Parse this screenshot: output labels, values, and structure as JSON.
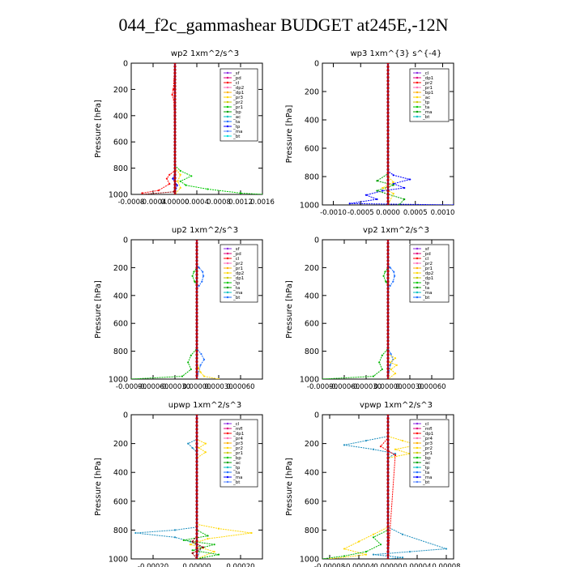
{
  "page": {
    "title": "044_f2c_gammashear  BUDGET at245E,-12N"
  },
  "chart_data": [
    {
      "type": "line",
      "title": "wp2   1xm^2/s^3",
      "ylabel": "Pressure [hPa]",
      "ylim": [
        1000,
        0
      ],
      "yticks": [
        0,
        200,
        400,
        600,
        800,
        1000
      ],
      "xlim": [
        -0.0008,
        0.0016
      ],
      "xticks": [
        -0.0008,
        -0.0004,
        0.0,
        0.0004,
        0.0008,
        0.0012,
        0.0016
      ],
      "xticklabels": [
        "-0.0008",
        "-0.0004",
        "0.00000",
        "0.0004",
        "0.0008",
        "0.0012",
        "0.0016"
      ],
      "legend": [
        "_sf",
        "_pd",
        "_cl",
        "_dp2",
        "_dp1",
        "_pr3",
        "_pr2",
        "_pr1",
        "_bp",
        "_ac",
        "_ta",
        "_tp",
        "_ma",
        "_bt"
      ],
      "series": [
        {
          "color": "#00c800",
          "x": [
            0,
            0,
            0,
            0,
            0.0001,
            0.0003,
            0.0001,
            0.0002,
            0.0006,
            0.0012,
            0.0016
          ],
          "y": [
            0,
            200,
            600,
            780,
            820,
            860,
            900,
            930,
            960,
            990,
            1000
          ]
        },
        {
          "color": "#ff0000",
          "x": [
            0,
            -3e-05,
            -5e-05,
            -2e-05,
            0,
            0,
            -0.0001,
            -0.00015,
            -0.0001,
            -0.0003,
            -0.0006
          ],
          "y": [
            0,
            200,
            240,
            280,
            600,
            820,
            850,
            880,
            920,
            970,
            990
          ]
        },
        {
          "color": "#ffd700",
          "x": [
            0,
            0,
            0.0001,
            5e-05,
            0.0001,
            0
          ],
          "y": [
            0,
            800,
            850,
            900,
            950,
            1000
          ]
        },
        {
          "color": "#0000ff",
          "x": [
            0,
            0,
            -4e-05,
            4e-05,
            0
          ],
          "y": [
            0,
            840,
            880,
            930,
            1000
          ]
        },
        {
          "color": "#8b0000",
          "x": [
            0,
            0,
            -2e-05,
            -0.0006
          ],
          "y": [
            0,
            940,
            980,
            1000
          ]
        },
        {
          "color": "#8a2be2",
          "x": [
            0,
            0,
            0,
            0
          ],
          "y": [
            0,
            300,
            700,
            1000
          ]
        }
      ]
    },
    {
      "type": "line",
      "title": "wp3   1xm^{3} s^{-4}",
      "ylabel": "Pressure [hPa]",
      "ylim": [
        1000,
        0
      ],
      "yticks": [
        0,
        200,
        400,
        600,
        800,
        1000
      ],
      "xlim": [
        -0.0012,
        0.0012
      ],
      "xticks": [
        -0.001,
        -0.0005,
        0.0,
        0.0005,
        0.001
      ],
      "xticklabels": [
        "-0.0010",
        "-0.0005",
        "0.0000",
        "0.0005",
        "0.0010"
      ],
      "legend": [
        "_cl",
        "_dp1",
        "_pr2",
        "_pr1",
        "_bp1",
        "_ac",
        "_tp",
        "_ta",
        "_ma",
        "_bt"
      ],
      "series": [
        {
          "color": "#0000ff",
          "x": [
            0,
            0,
            0.0001,
            0.0004,
            0.0001,
            0.0003,
            -0.0001,
            -0.0004,
            -0.0002,
            -0.0007,
            0.0012
          ],
          "y": [
            0,
            760,
            790,
            820,
            850,
            880,
            900,
            930,
            960,
            990,
            1000
          ]
        },
        {
          "color": "#00a000",
          "x": [
            0,
            0,
            -0.0002,
            0.0001,
            -0.0002,
            0.0003,
            0.0002
          ],
          "y": [
            0,
            780,
            830,
            860,
            900,
            960,
            1000
          ]
        },
        {
          "color": "#ffd700",
          "x": [
            0,
            0,
            0.0001,
            -0.0001,
            0.0001,
            0
          ],
          "y": [
            0,
            800,
            840,
            880,
            920,
            1000
          ]
        },
        {
          "color": "#ff0000",
          "x": [
            0,
            0,
            0
          ],
          "y": [
            0,
            500,
            1000
          ]
        }
      ]
    },
    {
      "type": "line",
      "title": "up2   1xm^2/s^3",
      "ylabel": "Pressure [hPa]",
      "ylim": [
        1000,
        0
      ],
      "yticks": [
        0,
        200,
        400,
        600,
        800,
        1000
      ],
      "xlim": [
        -0.0009,
        0.0009
      ],
      "xticks": [
        -0.0009,
        -0.0006,
        -0.0003,
        0.0,
        0.0003,
        0.0006
      ],
      "xticklabels": [
        "-0.00090",
        "-0.00060",
        "-0.00030",
        "0.00000",
        "0.00030",
        "0.00060"
      ],
      "legend": [
        "_sf",
        "_pd",
        "_cl",
        "_pr2",
        "_pr1",
        "_dp2",
        "_dp1",
        "_tp",
        "_ta",
        "_ma",
        "_bt"
      ],
      "series": [
        {
          "color": "#1e6fff",
          "x": [
            0,
            0,
            3e-05,
            8e-05,
            9e-05,
            7e-05,
            3e-05,
            0,
            0,
            6e-05,
            0.0001,
            5e-05,
            0
          ],
          "y": [
            0,
            180,
            200,
            230,
            260,
            300,
            330,
            350,
            780,
            820,
            860,
            900,
            1000
          ]
        },
        {
          "color": "#00b400",
          "x": [
            0,
            0,
            -4e-05,
            -6e-05,
            -3e-05,
            0,
            0,
            -8e-05,
            -0.00012,
            -8e-05,
            -0.0002,
            -0.0009
          ],
          "y": [
            0,
            200,
            230,
            260,
            300,
            330,
            780,
            830,
            880,
            930,
            980,
            1000
          ]
        },
        {
          "color": "#ffd700",
          "x": [
            0,
            0,
            2e-05,
            5e-05,
            0.0001,
            0.0003
          ],
          "y": [
            0,
            880,
            920,
            950,
            980,
            1000
          ]
        },
        {
          "color": "#8b0000",
          "x": [
            0,
            0,
            0
          ],
          "y": [
            0,
            500,
            1000
          ]
        }
      ]
    },
    {
      "type": "line",
      "title": "vp2   1xm^2/s^3",
      "ylabel": "Pressure [hPa]",
      "ylim": [
        1000,
        0
      ],
      "yticks": [
        0,
        200,
        400,
        600,
        800,
        1000
      ],
      "xlim": [
        -0.0009,
        0.0009
      ],
      "xticks": [
        -0.0009,
        -0.0006,
        -0.0003,
        0.0,
        0.0003,
        0.0006
      ],
      "xticklabels": [
        "-0.00090",
        "-0.00060",
        "-0.00030",
        "0.00000",
        "0.00030",
        "0.00060"
      ],
      "legend": [
        "_sf",
        "_pd",
        "_cl",
        "_pr2",
        "_pr1",
        "_dp2",
        "_dp1",
        "_tp",
        "_ta",
        "_ma",
        "_bt"
      ],
      "series": [
        {
          "color": "#1e6fff",
          "x": [
            0,
            0,
            3e-05,
            8e-05,
            9e-05,
            7e-05,
            3e-05,
            0,
            0,
            4e-05,
            7e-05,
            3e-05,
            0
          ],
          "y": [
            0,
            180,
            200,
            230,
            260,
            300,
            330,
            350,
            780,
            820,
            860,
            900,
            1000
          ]
        },
        {
          "color": "#00b400",
          "x": [
            0,
            0,
            -4e-05,
            -6e-05,
            -3e-05,
            0,
            0,
            -8e-05,
            -0.00012,
            -8e-05,
            -0.0002,
            -0.0009
          ],
          "y": [
            0,
            200,
            230,
            260,
            300,
            330,
            780,
            830,
            880,
            930,
            980,
            1000
          ]
        },
        {
          "color": "#ffd700",
          "x": [
            0,
            0,
            0.0001,
            3e-05,
            0.00012,
            4e-05,
            0.0001,
            0
          ],
          "y": [
            0,
            820,
            850,
            880,
            900,
            930,
            960,
            1000
          ]
        },
        {
          "color": "#8b0000",
          "x": [
            0,
            0,
            0
          ],
          "y": [
            0,
            500,
            1000
          ]
        }
      ]
    },
    {
      "type": "line",
      "title": "upwp   1xm^2/s^3",
      "ylabel": "Pressure [hPa]",
      "ylim": [
        1000,
        0
      ],
      "yticks": [
        0,
        200,
        400,
        600,
        800,
        1000
      ],
      "xlim": [
        -0.0003,
        0.0003
      ],
      "xticks": [
        -0.0002,
        0.0,
        0.0002
      ],
      "xticklabels": [
        "-0.00020",
        "0.00000",
        "0.00020"
      ],
      "legend": [
        "_cl",
        "_mfl",
        "_dp1",
        "_pr4",
        "_pr3",
        "_pr2",
        "_pr1",
        "_bp",
        "_ac",
        "_tp",
        "_ta",
        "_ma",
        "_bt"
      ],
      "series": [
        {
          "color": "#1e8fbf",
          "x": [
            0,
            0,
            -4e-05,
            -2e-05,
            0,
            0,
            -0.0001,
            -0.00028,
            -0.0001,
            -3e-05,
            2e-05,
            0
          ],
          "y": [
            0,
            170,
            200,
            230,
            260,
            780,
            800,
            820,
            850,
            880,
            920,
            1000
          ]
        },
        {
          "color": "#ffd700",
          "x": [
            0,
            0,
            4e-05,
            1e-05,
            4e-05,
            0,
            0,
            0.0001,
            0.00025,
            5e-05,
            -3e-05,
            8e-05,
            0
          ],
          "y": [
            0,
            170,
            200,
            230,
            260,
            300,
            760,
            790,
            820,
            860,
            900,
            950,
            1000
          ]
        },
        {
          "color": "#00b400",
          "x": [
            0,
            0,
            5e-05,
            -6e-05,
            8e-05,
            -2e-05,
            0.0001,
            0
          ],
          "y": [
            0,
            800,
            840,
            870,
            900,
            940,
            970,
            1000
          ]
        },
        {
          "color": "#8b0000",
          "x": [
            0,
            0,
            -2e-05,
            3e-05,
            -2e-05,
            0
          ],
          "y": [
            0,
            840,
            880,
            920,
            960,
            1000
          ]
        },
        {
          "color": "#8a2be2",
          "x": [
            0,
            0,
            0
          ],
          "y": [
            0,
            500,
            1000
          ]
        }
      ]
    },
    {
      "type": "line",
      "title": "vpwp   1xm^2/s^3",
      "ylabel": "Pressure [hPa]",
      "ylim": [
        1000,
        0
      ],
      "yticks": [
        0,
        200,
        400,
        600,
        800,
        1000
      ],
      "xlim": [
        -9e-05,
        9e-05
      ],
      "xticks": [
        -8e-05,
        -4e-05,
        0.0,
        4e-05,
        8e-05
      ],
      "xticklabels": [
        "-0.00008",
        "-0.00004",
        "0.00000",
        "0.00004",
        "0.00008"
      ],
      "legend": [
        "_cl",
        "_mfl",
        "_dp1",
        "_pr4",
        "_pr3",
        "_pr2",
        "_pr1",
        "_bp",
        "_ac",
        "_tp",
        "_ta",
        "_ma",
        "_bt"
      ],
      "series": [
        {
          "color": "#1e8fbf",
          "x": [
            0,
            0,
            -3e-05,
            -6e-05,
            -2e-05,
            1e-05,
            0,
            0,
            2e-05,
            8e-05,
            3e-05,
            -2e-05,
            2e-05,
            0
          ],
          "y": [
            0,
            150,
            180,
            210,
            240,
            270,
            300,
            780,
            830,
            930,
            950,
            970,
            990,
            1000
          ]
        },
        {
          "color": "#ffd700",
          "x": [
            0,
            0,
            2e-05,
            4e-05,
            1e-05,
            3e-05,
            0,
            0,
            -2e-05,
            -4e-05,
            -6e-05,
            -3e-05,
            -8e-05
          ],
          "y": [
            0,
            150,
            180,
            210,
            240,
            270,
            300,
            780,
            830,
            880,
            930,
            970,
            1000
          ]
        },
        {
          "color": "#00b400",
          "x": [
            0,
            0,
            -2e-05,
            -1e-05,
            -3e-05,
            -6e-05,
            -9e-05
          ],
          "y": [
            0,
            800,
            850,
            900,
            950,
            980,
            1000
          ]
        },
        {
          "color": "#ff0000",
          "x": [
            0,
            0,
            -1e-05,
            1e-05,
            0
          ],
          "y": [
            0,
            160,
            220,
            280,
            1000
          ]
        },
        {
          "color": "#8a2be2",
          "x": [
            0,
            0,
            0
          ],
          "y": [
            0,
            500,
            1000
          ]
        }
      ]
    }
  ]
}
